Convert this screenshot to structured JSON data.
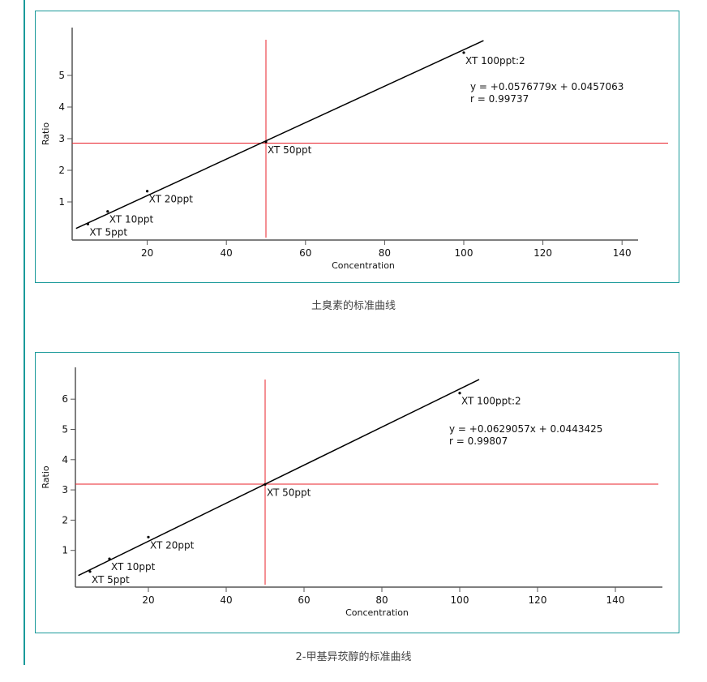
{
  "captions": [
    "土臭素的标准曲线",
    "2-甲基异莰醇的标准曲线"
  ],
  "chart_data": [
    {
      "type": "scatter",
      "title": "土臭素的标准曲线",
      "xlabel": "Concentration",
      "ylabel": "Ratio",
      "xticks": [
        20,
        40,
        60,
        80,
        100,
        120,
        140
      ],
      "yticks": [
        1,
        2,
        3,
        4,
        5
      ],
      "xlim": [
        0,
        145
      ],
      "ylim": [
        0,
        6.2
      ],
      "grid": false,
      "points": [
        {
          "label": "XT 5ppt",
          "x": 5,
          "y": 0.3
        },
        {
          "label": "XT 10ppt",
          "x": 10,
          "y": 0.7
        },
        {
          "label": "XT 20ppt",
          "x": 20,
          "y": 1.34
        },
        {
          "label": "XT 50ppt",
          "x": 50,
          "y": 2.9
        },
        {
          "label": "XT 100ppt:2",
          "x": 100,
          "y": 5.72
        }
      ],
      "fit": {
        "slope": 0.0576779,
        "intercept": 0.0457063,
        "x_range": [
          2,
          105
        ]
      },
      "equation": "y = +0.0576779x + 0.0457063",
      "r_text": "r = 0.99737",
      "crosshair": {
        "x": 50,
        "y": 2.86,
        "color": "#e8202a"
      }
    },
    {
      "type": "scatter",
      "title": "2-甲基异莰醇的标准曲线",
      "xlabel": "Concentration",
      "ylabel": "Ratio",
      "xticks": [
        20,
        40,
        60,
        80,
        100,
        120,
        140
      ],
      "yticks": [
        1,
        2,
        3,
        4,
        5,
        6
      ],
      "xlim": [
        0,
        152
      ],
      "ylim": [
        0,
        7
      ],
      "grid": false,
      "points": [
        {
          "label": "XT 5ppt",
          "x": 5,
          "y": 0.3
        },
        {
          "label": "XT 10ppt",
          "x": 10,
          "y": 0.72
        },
        {
          "label": "XT 20ppt",
          "x": 20,
          "y": 1.44
        },
        {
          "label": "XT 50ppt",
          "x": 50,
          "y": 3.18
        },
        {
          "label": "XT 100ppt:2",
          "x": 100,
          "y": 6.2
        }
      ],
      "fit": {
        "slope": 0.0629057,
        "intercept": 0.0443425,
        "x_range": [
          2,
          105
        ]
      },
      "equation": "y = +0.0629057x + 0.0443425",
      "r_text": "r = 0.99807",
      "crosshair": {
        "x": 50,
        "y": 3.19,
        "color": "#e8202a"
      }
    }
  ]
}
